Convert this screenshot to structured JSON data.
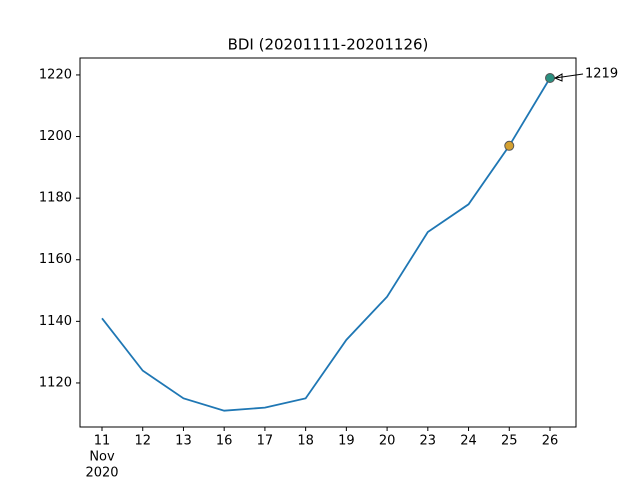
{
  "chart_data": {
    "type": "line",
    "title": "BDI (20201111-20201126)",
    "categories": [
      "11",
      "12",
      "13",
      "16",
      "17",
      "18",
      "19",
      "20",
      "23",
      "24",
      "25",
      "26"
    ],
    "category_caption": [
      "Nov",
      "2020"
    ],
    "series": [
      {
        "color": "#1f77b4",
        "values": [
          1141,
          1124,
          1115,
          1111,
          1112,
          1115,
          1134,
          1148,
          1169,
          1178,
          1197,
          1219
        ]
      }
    ],
    "markers": [
      {
        "index": 10,
        "color": "#d4a030"
      },
      {
        "index": 11,
        "color": "#2a9080"
      }
    ],
    "annotation": {
      "text": "1219",
      "index": 11
    },
    "ylim": [
      1105.7,
      1225.5
    ],
    "yticks": [
      1120,
      1140,
      1160,
      1180,
      1200,
      1220
    ]
  }
}
